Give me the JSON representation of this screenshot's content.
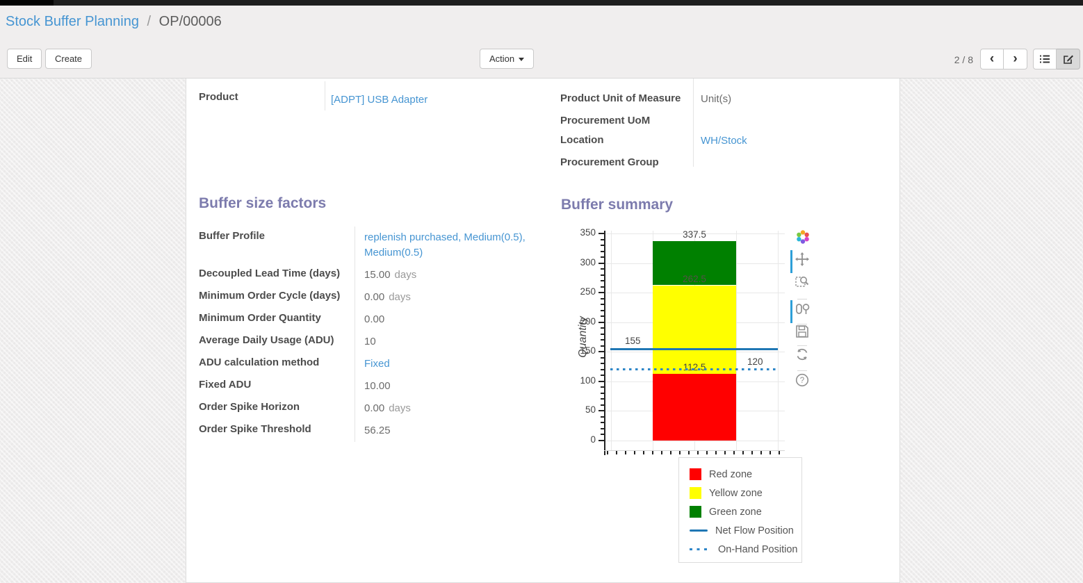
{
  "breadcrumb": {
    "parent": "Stock Buffer Planning",
    "separator": "/",
    "current": "OP/00006"
  },
  "toolbar": {
    "edit_label": "Edit",
    "create_label": "Create",
    "action_label": "Action",
    "pager_value": "2 / 8",
    "prev_glyph": "‹",
    "next_glyph": "›"
  },
  "icons": {
    "pager_prev": "chevron-left-icon",
    "pager_next": "chevron-right-icon",
    "view_list": "list-view-icon",
    "view_form": "form-edit-icon",
    "action_caret": "caret-down-icon",
    "modebar": [
      "plotly-logo-icon",
      "pan-icon",
      "zoom-box-icon",
      "compare-hover-icon",
      "save-icon",
      "reset-axes-icon",
      "help-icon"
    ]
  },
  "form": {
    "left": {
      "product_label": "Product",
      "product_value": "[ADPT] USB Adapter"
    },
    "info_rows": [
      {
        "label": "Product Unit of Measure",
        "value": "Unit(s)"
      },
      {
        "label": "Procurement UoM",
        "value": ""
      },
      {
        "label": "Location",
        "value": "WH/Stock"
      },
      {
        "label": "Procurement Group",
        "value": ""
      }
    ],
    "buffer_factors": {
      "title": "Buffer size factors",
      "rows": [
        {
          "label": "Buffer Profile",
          "value": "replenish purchased, Medium(0.5), Medium(0.5)"
        },
        {
          "label": "Decoupled Lead Time (days)",
          "value": "15.00",
          "suffix": "days"
        },
        {
          "label": "Minimum Order Cycle (days)",
          "value": "0.00",
          "suffix": "days"
        },
        {
          "label": "Minimum Order Quantity",
          "value": "0.00"
        },
        {
          "label": "Average Daily Usage (ADU)",
          "value": "10"
        },
        {
          "label": "ADU calculation method",
          "value": "Fixed"
        },
        {
          "label": "Fixed ADU",
          "value": "10.00"
        },
        {
          "label": "Order Spike Horizon",
          "value": "0.00",
          "suffix": "days"
        },
        {
          "label": "Order Spike Threshold",
          "value": "56.25"
        }
      ]
    },
    "buffer_summary_title": "Buffer summary"
  },
  "chart_data": {
    "type": "bar",
    "title": "Buffer summary",
    "xlabel": "",
    "ylabel": "Quantity",
    "ylim": [
      0,
      350
    ],
    "ytick_step": 50,
    "yticks": [
      0,
      50,
      100,
      150,
      200,
      250,
      300,
      350
    ],
    "grid": true,
    "series": [
      {
        "name": "Red zone",
        "color": "#ff0000",
        "range": [
          0,
          112.5
        ]
      },
      {
        "name": "Yellow zone",
        "color": "#ffff00",
        "range": [
          112.5,
          262.5
        ]
      },
      {
        "name": "Green zone",
        "color": "#008000",
        "range": [
          262.5,
          337.5
        ]
      }
    ],
    "hlines": [
      {
        "name": "Net Flow Position",
        "value": 155,
        "style": "solid",
        "color": "#1f77b4"
      },
      {
        "name": "On-Hand Position",
        "value": 120,
        "style": "dotted",
        "color": "#2e86c8"
      }
    ],
    "bar_labels": [
      {
        "text": "337.5",
        "value": 337.5,
        "color": "#444444"
      },
      {
        "text": "262.5",
        "value": 262.5,
        "color": "#56504a"
      },
      {
        "text": "112.5",
        "value": 112.5,
        "color": "#444444"
      }
    ],
    "line_labels": [
      {
        "text": "155",
        "value": 155,
        "side": "left"
      },
      {
        "text": "120",
        "value": 120,
        "side": "right"
      }
    ],
    "legend_position": "below-right",
    "legend": [
      {
        "label": "Red zone",
        "swatch": "box",
        "color": "#ff0000"
      },
      {
        "label": "Yellow zone",
        "swatch": "box",
        "color": "#ffff00"
      },
      {
        "label": "Green zone",
        "swatch": "box",
        "color": "#008000"
      },
      {
        "label": "Net Flow Position",
        "swatch": "line",
        "color": "#1f77b4"
      },
      {
        "label": "On-Hand Position",
        "swatch": "dots",
        "color": "#2e86c8"
      }
    ]
  }
}
